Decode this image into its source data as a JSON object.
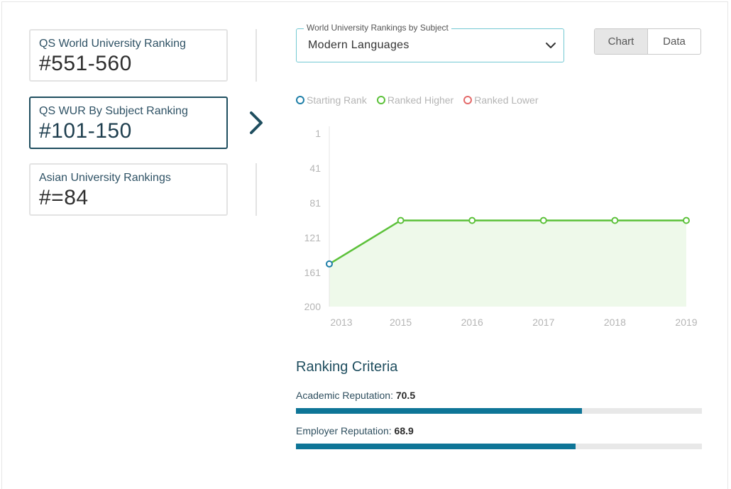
{
  "rankings": [
    {
      "title": "QS World University Ranking",
      "value": "#551-560",
      "active": false
    },
    {
      "title": "QS WUR By Subject Ranking",
      "value": "#101-150",
      "active": true
    },
    {
      "title": "Asian University Rankings",
      "value": "#=84",
      "active": false
    }
  ],
  "subject_select": {
    "legend": "World University Rankings by Subject",
    "value": "Modern Languages"
  },
  "view_toggle": {
    "chart": "Chart",
    "data": "Data",
    "selected": "chart"
  },
  "legend": {
    "starting": "Starting Rank",
    "higher": "Ranked Higher",
    "lower": "Ranked Lower"
  },
  "colors": {
    "starting": "#1f7fa8",
    "higher": "#5cc13a",
    "lower": "#e46a6a",
    "area": "#eef9ea",
    "bar": "#0e7597",
    "active_border": "#1f4e5f"
  },
  "chart_data": {
    "type": "line",
    "x": [
      "2013",
      "2015",
      "2016",
      "2017",
      "2018",
      "2019"
    ],
    "series": [
      {
        "values": [
          151,
          101,
          101,
          101,
          101,
          101
        ]
      }
    ],
    "y_ticks": [
      "1",
      "41",
      "81",
      "121",
      "161",
      "200"
    ],
    "ylim": [
      200,
      1
    ],
    "y_inverted": true,
    "grid": false
  },
  "criteria": {
    "title": "Ranking Criteria",
    "items": [
      {
        "label": "Academic Reputation:",
        "value": "70.5",
        "score": 70.5
      },
      {
        "label": "Employer Reputation:",
        "value": "68.9",
        "score": 68.9
      }
    ]
  }
}
